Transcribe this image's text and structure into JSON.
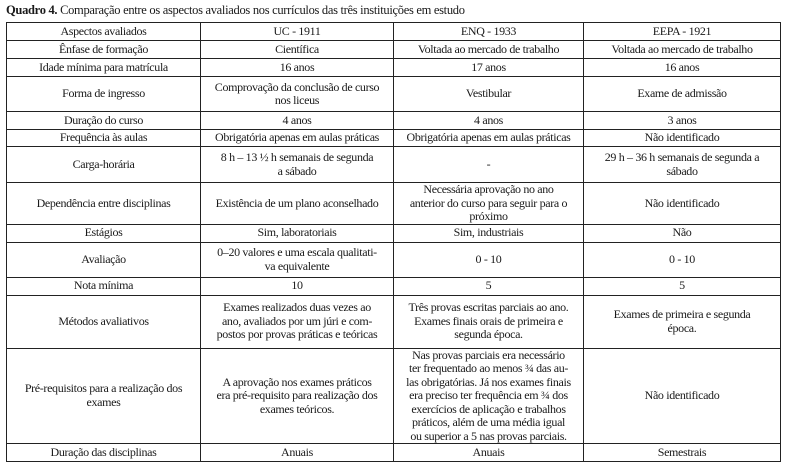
{
  "caption": {
    "label": "Quadro 4.",
    "text": " Comparação entre os aspectos avaliados nos currículos das três instituições em estudo"
  },
  "table": {
    "headers": [
      "Aspectos avaliados",
      "UC - 1911",
      "ENQ - 1933",
      "EEPA - 1921"
    ],
    "rows": [
      [
        "Ênfase de formação",
        "Científica",
        "Voltada ao mercado de trabalho",
        "Voltada ao mercado de trabalho"
      ],
      [
        "Idade mínima para matrícula",
        "16 anos",
        "17 anos",
        "16 anos"
      ],
      [
        "Forma de ingresso",
        "Comprovação da conclusão de curso\nnos liceus",
        "Vestibular",
        "Exame de admissão"
      ],
      [
        "Duração do curso",
        "4 anos",
        "4 anos",
        "3 anos"
      ],
      [
        "Frequência às aulas",
        "Obrigatória apenas em aulas práticas",
        "Obrigatória apenas em aulas práticas",
        "Não identificado"
      ],
      [
        "Carga-horária",
        "8 h – 13 ½ h semanais de segunda\na sábado",
        "-",
        "29 h – 36 h semanais de segunda a\nsábado"
      ],
      [
        "Dependência entre disciplinas",
        "Existência de um plano aconselhado",
        "Necessária aprovação no ano\nanterior do curso para seguir para o\npróximo",
        "Não identificado"
      ],
      [
        "Estágios",
        "Sim, laboratoriais",
        "Sim, industriais",
        "Não"
      ],
      [
        "Avaliação",
        "0–20 valores e uma escala qualitati-\nva equivalente",
        "0 - 10",
        "0 - 10"
      ],
      [
        "Nota mínima",
        "10",
        "5",
        "5"
      ],
      [
        "Métodos avaliativos",
        "Exames realizados duas vezes ao\nano, avaliados por um júri e com-\npostos por provas práticas e teóricas",
        "Três provas escritas parciais ao ano.\nExames finais orais de primeira e\nsegunda época.",
        "Exames de primeira e segunda\népoca."
      ],
      [
        "Pré-requisitos para a realização dos\nexames",
        "A aprovação nos exames práticos\nera pré-requisito para realização dos\nexames teóricos.",
        "Nas provas parciais era necessário\nter frequentado ao menos ¾ das au-\nlas obrigatórias. Já nos exames finais\nera preciso ter frequência em ¾ dos\nexercícios de aplicação e trabalhos\npráticos, além de uma média igual\nou superior a 5 nas provas parciais.",
        "Não identificado"
      ],
      [
        "Duração das disciplinas",
        "Anuais",
        "Anuais",
        "Semestrais"
      ]
    ]
  }
}
